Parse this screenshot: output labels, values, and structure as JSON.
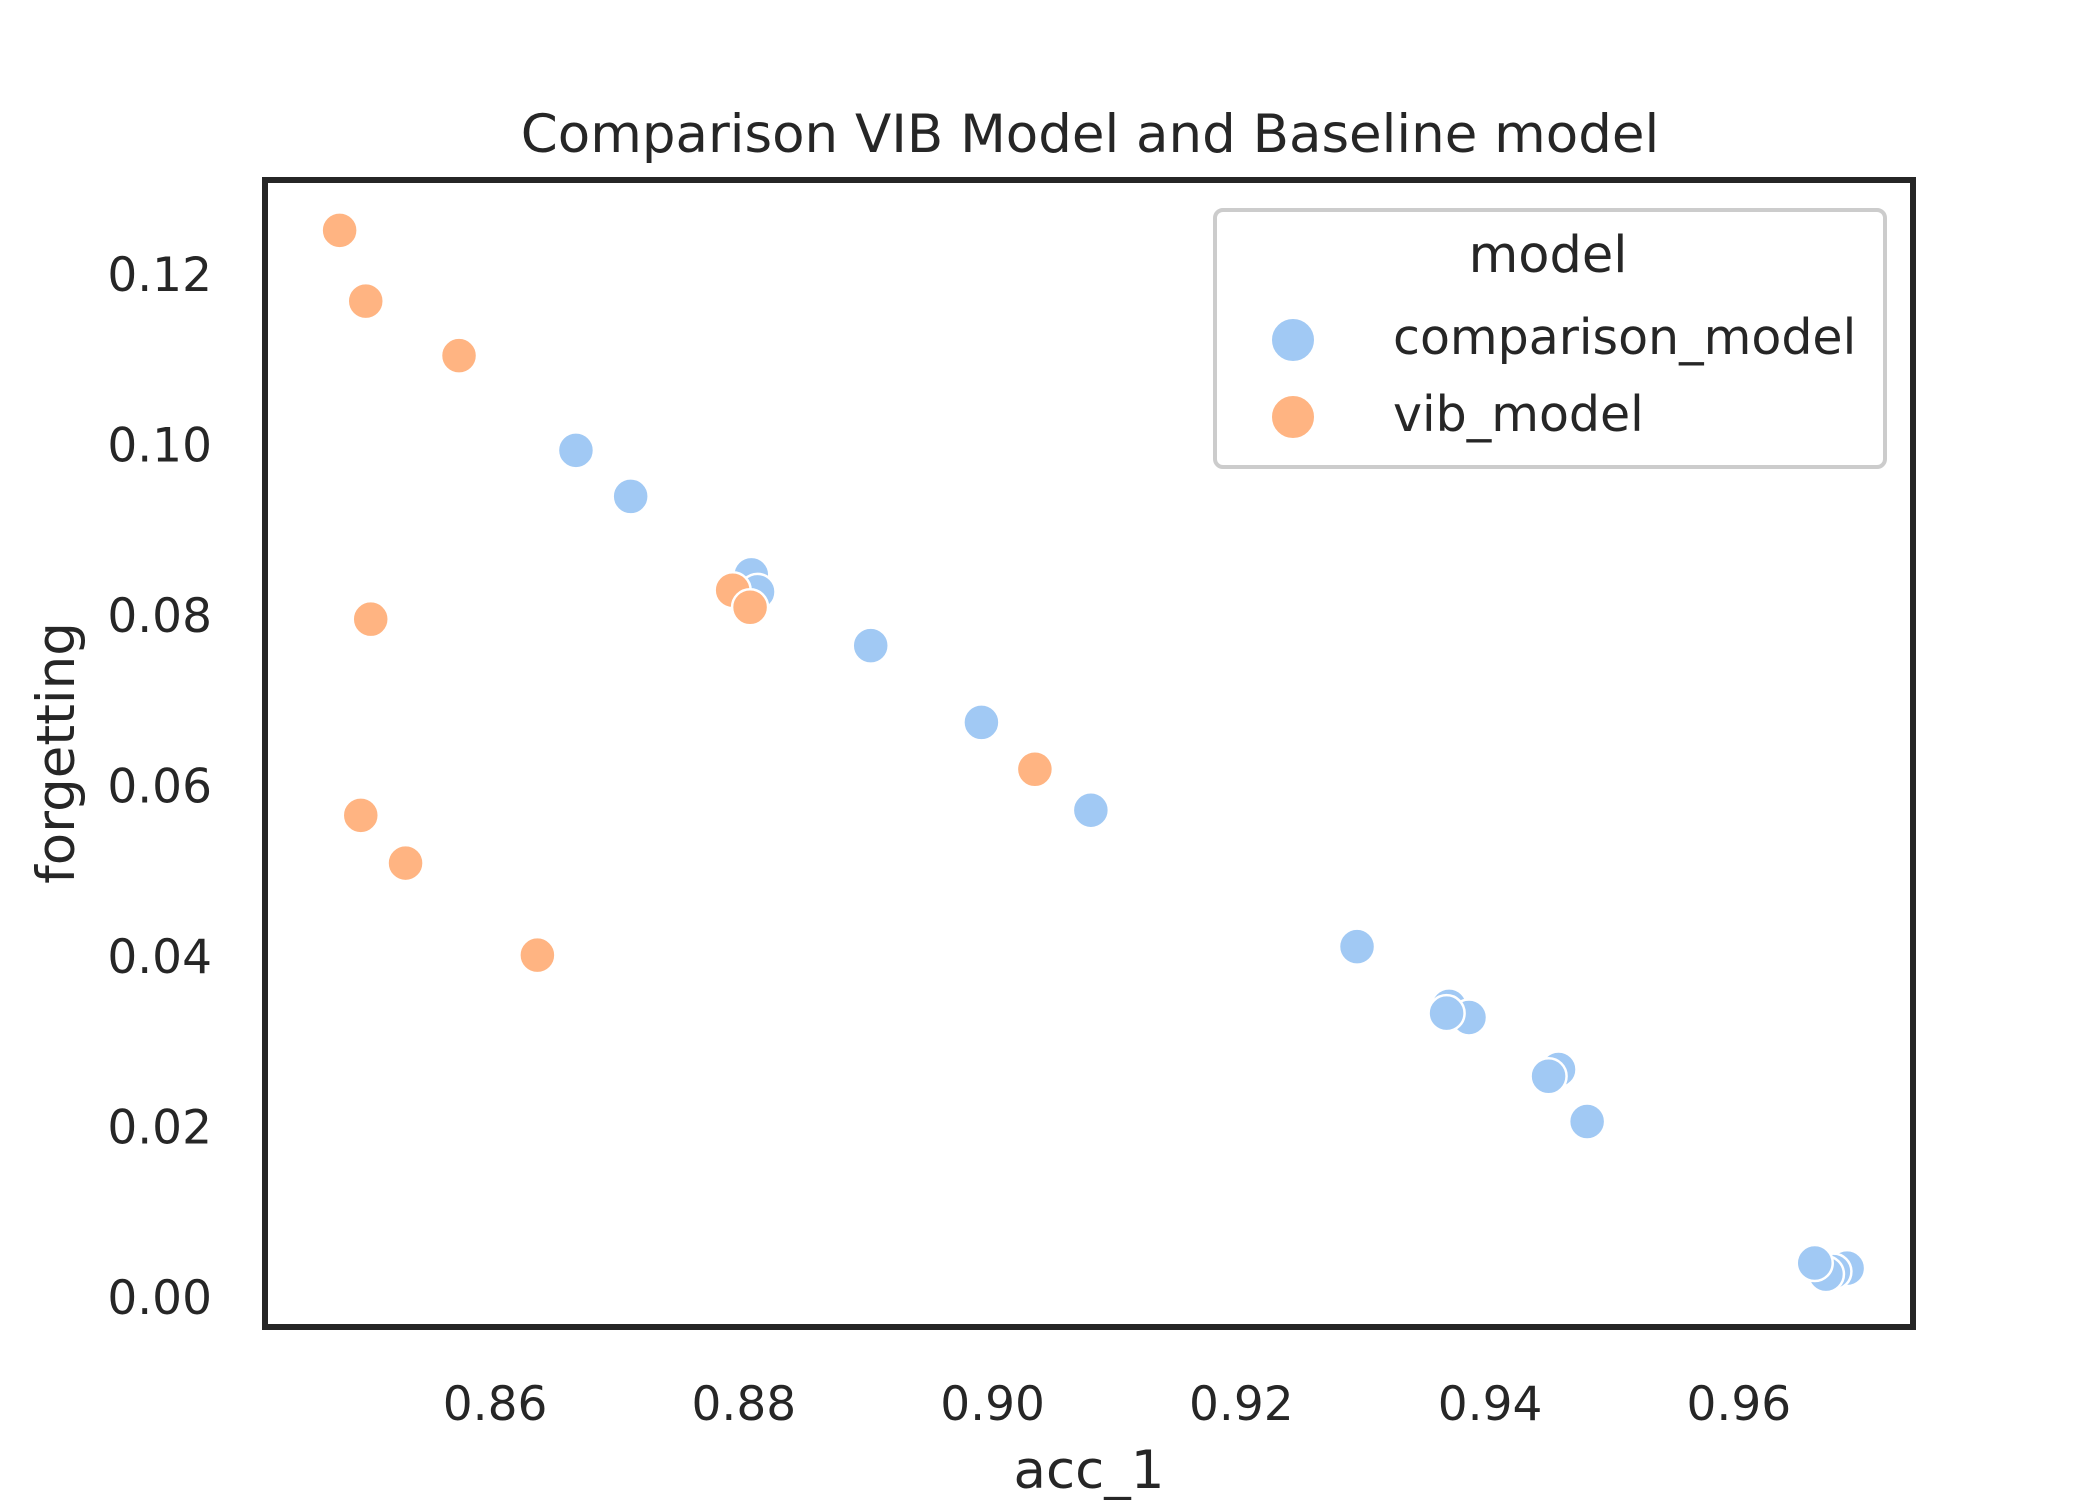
{
  "chart_data": {
    "type": "scatter",
    "title": "Comparison VIB Model and Baseline model",
    "xlabel": "acc_1",
    "ylabel": "forgetting",
    "xlim": [
      0.8415,
      0.974
    ],
    "ylim": [
      -0.0035,
      0.131
    ],
    "xticks": [
      0.86,
      0.88,
      0.9,
      0.92,
      0.94,
      0.96
    ],
    "xtick_labels": [
      "0.86",
      "0.88",
      "0.90",
      "0.92",
      "0.94",
      "0.96"
    ],
    "yticks": [
      0.0,
      0.02,
      0.04,
      0.06,
      0.08,
      0.1,
      0.12
    ],
    "ytick_labels": [
      "0.00",
      "0.02",
      "0.04",
      "0.06",
      "0.08",
      "0.10",
      "0.12"
    ],
    "grid": false,
    "legend": {
      "title": "model",
      "placement": "top-right"
    },
    "series": [
      {
        "name": "comparison_model",
        "color": "#a1c9f4",
        "points": [
          [
            0.8665,
            0.0993
          ],
          [
            0.8709,
            0.0939
          ],
          [
            0.8806,
            0.0847
          ],
          [
            0.8811,
            0.0827
          ],
          [
            0.8902,
            0.0764
          ],
          [
            0.8991,
            0.0674
          ],
          [
            0.9079,
            0.0571
          ],
          [
            0.9293,
            0.0411
          ],
          [
            0.9367,
            0.0341
          ],
          [
            0.9383,
            0.0328
          ],
          [
            0.9365,
            0.0333
          ],
          [
            0.9455,
            0.0267
          ],
          [
            0.9447,
            0.0259
          ],
          [
            0.9478,
            0.0206
          ],
          [
            0.9687,
            0.0034
          ],
          [
            0.9676,
            0.003
          ],
          [
            0.967,
            0.0027
          ],
          [
            0.9661,
            0.004
          ]
        ]
      },
      {
        "name": "vib_model",
        "color": "#ffb482",
        "points": [
          [
            0.8475,
            0.1251
          ],
          [
            0.8496,
            0.1168
          ],
          [
            0.8571,
            0.1104
          ],
          [
            0.85,
            0.0795
          ],
          [
            0.8791,
            0.0829
          ],
          [
            0.8805,
            0.0809
          ],
          [
            0.9034,
            0.0619
          ],
          [
            0.8492,
            0.0565
          ],
          [
            0.8528,
            0.0509
          ],
          [
            0.8634,
            0.0401
          ]
        ]
      }
    ]
  }
}
